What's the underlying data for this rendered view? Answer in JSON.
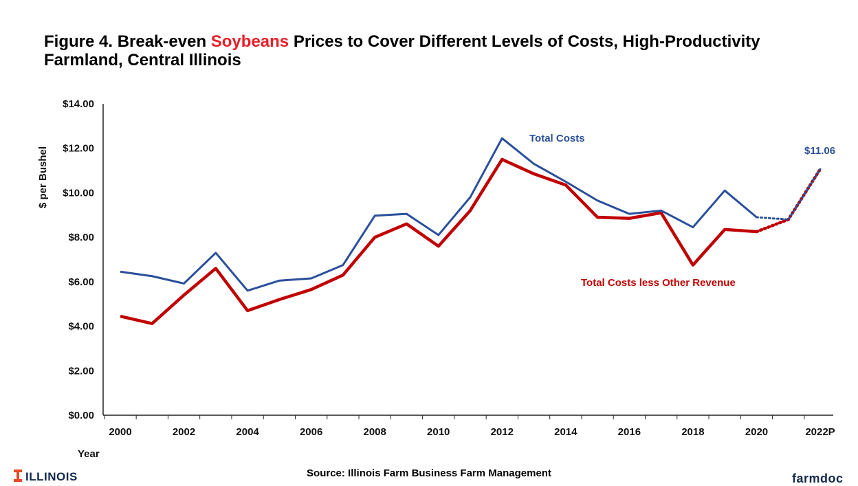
{
  "title": {
    "prefix": "Figure 4. Break-even ",
    "highlight": "Soybeans",
    "suffix": " Prices to Cover Different Levels of Costs, High-Productivity Farmland, Central Illinois"
  },
  "colors": {
    "highlight": "#e8202a",
    "total_costs": "#2a4f9a",
    "less_other": "#c00000",
    "axis": "#222222"
  },
  "source": "Source:  Illinois Farm Business Farm Management",
  "logos": {
    "left": "ILLINOIS",
    "right": "farmdoc"
  },
  "chart_data": {
    "type": "line",
    "xlabel": "Year",
    "ylabel": "$ per Bushel",
    "ylim": [
      0,
      14
    ],
    "y_ticks": [
      "$0.00",
      "$2.00",
      "$4.00",
      "$6.00",
      "$8.00",
      "$10.00",
      "$12.00",
      "$14.00"
    ],
    "x_tick_labels": [
      "2000",
      "2002",
      "2004",
      "2006",
      "2008",
      "2010",
      "2012",
      "2014",
      "2016",
      "2018",
      "2020",
      "2022P"
    ],
    "x": [
      2000,
      2001,
      2002,
      2003,
      2004,
      2005,
      2006,
      2007,
      2008,
      2009,
      2010,
      2011,
      2012,
      2013,
      2014,
      2015,
      2016,
      2017,
      2018,
      2019,
      2020,
      2021,
      2022
    ],
    "series": [
      {
        "name": "Total Costs",
        "values": [
          6.45,
          6.25,
          5.92,
          7.3,
          5.6,
          6.05,
          6.15,
          6.75,
          8.97,
          9.05,
          8.1,
          9.8,
          12.45,
          11.3,
          10.5,
          9.65,
          9.05,
          9.2,
          8.45,
          10.1,
          8.9,
          8.8,
          11.06
        ],
        "projection_from": 2020
      },
      {
        "name": "Total Costs less Other Revenue",
        "values": [
          4.45,
          4.12,
          5.4,
          6.6,
          4.7,
          5.2,
          5.65,
          6.3,
          8.0,
          8.6,
          7.6,
          9.2,
          11.5,
          10.85,
          10.35,
          8.9,
          8.85,
          9.1,
          6.75,
          8.35,
          8.25,
          8.8,
          11.06
        ],
        "projection_from": 2020
      }
    ],
    "annotations": [
      {
        "text": "$11.06",
        "x": 2022,
        "y": 11.06
      }
    ]
  }
}
